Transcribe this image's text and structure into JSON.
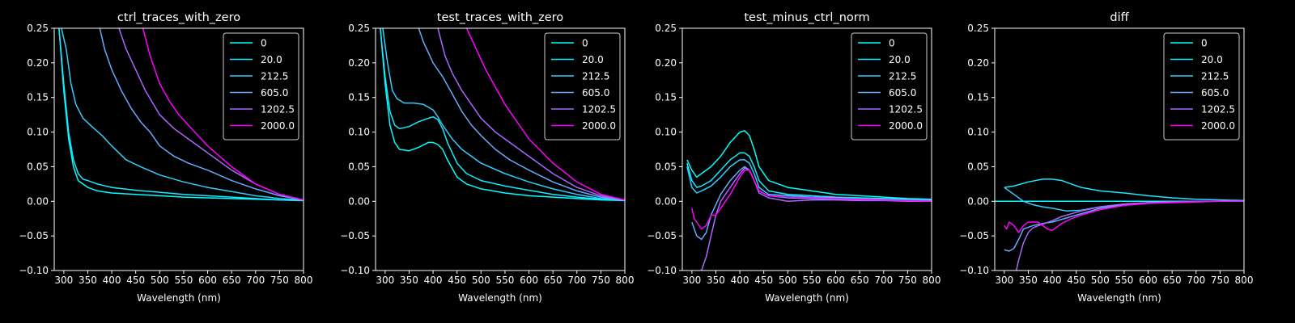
{
  "figure": {
    "background": "#000000",
    "foreground": "#ffffff"
  },
  "legend_entries": [
    "0",
    "20.0",
    "212.5",
    "605.0",
    "1202.5",
    "2000.0"
  ],
  "series_colors": [
    "#00ffff",
    "#14ebff",
    "#33ccff",
    "#66aaff",
    "#aa66ff",
    "#ff00ff"
  ],
  "chart_data": [
    {
      "type": "line",
      "title": "ctrl_traces_with_zero",
      "xlabel": "Wavelength (nm)",
      "ylabel": "",
      "xlim": [
        280,
        800
      ],
      "ylim": [
        -0.1,
        0.25
      ],
      "xticks": [
        "300",
        "350",
        "400",
        "450",
        "500",
        "550",
        "600",
        "650",
        "700",
        "750",
        "800"
      ],
      "yticks": [
        "−0.10",
        "−0.05",
        "0.00",
        "0.05",
        "0.10",
        "0.15",
        "0.20",
        "0.25"
      ],
      "legend": "top-right",
      "grid": false,
      "series": [
        {
          "name": "0",
          "x": [
            290,
            300,
            310,
            320,
            330,
            340,
            350,
            370,
            400,
            450,
            500,
            550,
            600,
            650,
            700,
            750,
            800
          ],
          "y": [
            0.25,
            0.16,
            0.09,
            0.05,
            0.03,
            0.025,
            0.02,
            0.015,
            0.012,
            0.01,
            0.008,
            0.006,
            0.005,
            0.004,
            0.003,
            0.002,
            0.001
          ]
        },
        {
          "name": "20.0",
          "x": [
            290,
            300,
            310,
            320,
            330,
            340,
            350,
            370,
            400,
            450,
            500,
            550,
            600,
            650,
            700,
            750,
            800
          ],
          "y": [
            0.25,
            0.17,
            0.1,
            0.06,
            0.04,
            0.032,
            0.03,
            0.025,
            0.02,
            0.016,
            0.013,
            0.01,
            0.008,
            0.006,
            0.004,
            0.002,
            0.001
          ]
        },
        {
          "name": "212.5",
          "x": [
            295,
            305,
            315,
            325,
            340,
            360,
            380,
            400,
            430,
            460,
            500,
            550,
            600,
            650,
            700,
            750,
            800
          ],
          "y": [
            0.25,
            0.22,
            0.17,
            0.14,
            0.12,
            0.107,
            0.095,
            0.08,
            0.06,
            0.05,
            0.038,
            0.028,
            0.02,
            0.014,
            0.008,
            0.004,
            0.002
          ]
        },
        {
          "name": "605.0",
          "x": [
            375,
            385,
            400,
            420,
            440,
            460,
            480,
            500,
            530,
            560,
            600,
            650,
            700,
            750,
            800
          ],
          "y": [
            0.25,
            0.22,
            0.19,
            0.16,
            0.135,
            0.115,
            0.1,
            0.08,
            0.065,
            0.055,
            0.045,
            0.03,
            0.018,
            0.008,
            0.002
          ]
        },
        {
          "name": "1202.5",
          "x": [
            415,
            430,
            450,
            470,
            500,
            530,
            560,
            600,
            650,
            700,
            750,
            800
          ],
          "y": [
            0.25,
            0.22,
            0.19,
            0.16,
            0.125,
            0.105,
            0.09,
            0.07,
            0.045,
            0.025,
            0.01,
            0.002
          ]
        },
        {
          "name": "2000.0",
          "x": [
            465,
            480,
            500,
            520,
            540,
            560,
            600,
            650,
            700,
            750,
            800
          ],
          "y": [
            0.25,
            0.21,
            0.17,
            0.145,
            0.125,
            0.11,
            0.08,
            0.05,
            0.025,
            0.01,
            0.002
          ]
        }
      ]
    },
    {
      "type": "line",
      "title": "test_traces_with_zero",
      "xlabel": "Wavelength (nm)",
      "ylabel": "",
      "xlim": [
        280,
        800
      ],
      "ylim": [
        -0.1,
        0.25
      ],
      "xticks": [
        "300",
        "350",
        "400",
        "450",
        "500",
        "550",
        "600",
        "650",
        "700",
        "750",
        "800"
      ],
      "yticks": [
        "−0.10",
        "−0.05",
        "0.00",
        "0.05",
        "0.10",
        "0.15",
        "0.20",
        "0.25"
      ],
      "legend": "top-right",
      "grid": false,
      "series": [
        {
          "name": "0",
          "x": [
            290,
            300,
            310,
            320,
            330,
            350,
            370,
            390,
            400,
            410,
            420,
            430,
            450,
            470,
            500,
            550,
            600,
            650,
            700,
            750,
            800
          ],
          "y": [
            0.25,
            0.17,
            0.11,
            0.085,
            0.075,
            0.073,
            0.078,
            0.085,
            0.085,
            0.082,
            0.075,
            0.06,
            0.035,
            0.025,
            0.018,
            0.012,
            0.008,
            0.006,
            0.004,
            0.002,
            0.001
          ]
        },
        {
          "name": "20.0",
          "x": [
            290,
            300,
            310,
            320,
            330,
            350,
            370,
            390,
            400,
            410,
            420,
            430,
            450,
            470,
            500,
            550,
            600,
            650,
            700,
            750,
            800
          ],
          "y": [
            0.25,
            0.18,
            0.13,
            0.11,
            0.105,
            0.108,
            0.115,
            0.12,
            0.122,
            0.118,
            0.105,
            0.085,
            0.055,
            0.04,
            0.03,
            0.022,
            0.016,
            0.01,
            0.006,
            0.003,
            0.001
          ]
        },
        {
          "name": "212.5",
          "x": [
            295,
            305,
            315,
            325,
            340,
            360,
            380,
            400,
            410,
            420,
            440,
            460,
            500,
            550,
            600,
            650,
            700,
            750,
            800
          ],
          "y": [
            0.25,
            0.2,
            0.16,
            0.148,
            0.142,
            0.142,
            0.14,
            0.132,
            0.122,
            0.11,
            0.09,
            0.075,
            0.055,
            0.04,
            0.028,
            0.018,
            0.01,
            0.004,
            0.002
          ]
        },
        {
          "name": "605.0",
          "x": [
            370,
            380,
            400,
            420,
            440,
            460,
            480,
            500,
            530,
            560,
            600,
            650,
            700,
            750,
            800
          ],
          "y": [
            0.25,
            0.23,
            0.2,
            0.18,
            0.155,
            0.13,
            0.11,
            0.095,
            0.075,
            0.06,
            0.045,
            0.028,
            0.015,
            0.006,
            0.002
          ]
        },
        {
          "name": "1202.5",
          "x": [
            410,
            425,
            440,
            460,
            480,
            500,
            530,
            560,
            600,
            650,
            700,
            750,
            800
          ],
          "y": [
            0.25,
            0.21,
            0.185,
            0.16,
            0.14,
            0.12,
            0.1,
            0.085,
            0.065,
            0.04,
            0.02,
            0.008,
            0.002
          ]
        },
        {
          "name": "2000.0",
          "x": [
            470,
            490,
            510,
            530,
            550,
            580,
            600,
            650,
            700,
            750,
            800
          ],
          "y": [
            0.25,
            0.22,
            0.19,
            0.165,
            0.14,
            0.11,
            0.09,
            0.055,
            0.028,
            0.01,
            0.002
          ]
        }
      ]
    },
    {
      "type": "line",
      "title": "test_minus_ctrl_norm",
      "xlabel": "Wavelength (nm)",
      "ylabel": "",
      "xlim": [
        280,
        800
      ],
      "ylim": [
        -0.1,
        0.25
      ],
      "xticks": [
        "300",
        "350",
        "400",
        "450",
        "500",
        "550",
        "600",
        "650",
        "700",
        "750",
        "800"
      ],
      "yticks": [
        "−0.10",
        "−0.05",
        "0.00",
        "0.05",
        "0.10",
        "0.15",
        "0.20",
        "0.25"
      ],
      "legend": "top-right",
      "grid": false,
      "series": [
        {
          "name": "0",
          "x": [
            290,
            300,
            310,
            320,
            340,
            360,
            380,
            400,
            410,
            420,
            430,
            440,
            460,
            500,
            550,
            600,
            650,
            700,
            750,
            800
          ],
          "y": [
            0.06,
            0.045,
            0.035,
            0.04,
            0.05,
            0.065,
            0.085,
            0.1,
            0.102,
            0.095,
            0.075,
            0.05,
            0.03,
            0.02,
            0.015,
            0.01,
            0.008,
            0.006,
            0.004,
            0.003
          ]
        },
        {
          "name": "20.0",
          "x": [
            290,
            300,
            310,
            320,
            340,
            360,
            380,
            400,
            410,
            420,
            430,
            440,
            460,
            500,
            550,
            600,
            650,
            700,
            750,
            800
          ],
          "y": [
            0.055,
            0.03,
            0.02,
            0.022,
            0.03,
            0.045,
            0.06,
            0.07,
            0.07,
            0.065,
            0.05,
            0.03,
            0.015,
            0.01,
            0.008,
            0.006,
            0.005,
            0.004,
            0.003,
            0.002
          ]
        },
        {
          "name": "212.5",
          "x": [
            290,
            300,
            310,
            320,
            340,
            360,
            380,
            400,
            410,
            420,
            430,
            440,
            460,
            500,
            550,
            600,
            650,
            700,
            750,
            800
          ],
          "y": [
            0.05,
            0.02,
            0.012,
            0.015,
            0.022,
            0.035,
            0.05,
            0.06,
            0.06,
            0.055,
            0.04,
            0.02,
            0.01,
            0.008,
            0.006,
            0.005,
            0.004,
            0.003,
            0.002,
            0.002
          ]
        },
        {
          "name": "605.0",
          "x": [
            300,
            310,
            320,
            330,
            340,
            360,
            380,
            400,
            410,
            420,
            430,
            440,
            460,
            500,
            550,
            600,
            650,
            700,
            750,
            800
          ],
          "y": [
            -0.03,
            -0.05,
            -0.055,
            -0.045,
            -0.02,
            0.01,
            0.03,
            0.045,
            0.05,
            0.045,
            0.03,
            0.015,
            0.008,
            0.005,
            0.004,
            0.003,
            0.002,
            0.002,
            0.001,
            0.001
          ]
        },
        {
          "name": "1202.5",
          "x": [
            320,
            330,
            340,
            350,
            360,
            380,
            400,
            410,
            420,
            430,
            440,
            460,
            500,
            550,
            600,
            650,
            700,
            750,
            800
          ],
          "y": [
            -0.1,
            -0.08,
            -0.05,
            -0.02,
            0.0,
            0.02,
            0.04,
            0.048,
            0.045,
            0.03,
            0.012,
            0.005,
            0.0,
            0.002,
            0.002,
            0.001,
            0.001,
            0.0,
            0.0
          ]
        },
        {
          "name": "2000.0",
          "x": [
            300,
            305,
            310,
            320,
            330,
            340,
            350,
            360,
            380,
            400,
            410,
            420,
            430,
            440,
            460,
            500,
            550,
            600,
            650,
            700,
            750,
            800
          ],
          "y": [
            -0.01,
            -0.025,
            -0.03,
            -0.04,
            -0.035,
            -0.02,
            -0.02,
            -0.01,
            0.01,
            0.035,
            0.045,
            0.045,
            0.03,
            0.015,
            0.008,
            0.006,
            0.005,
            0.004,
            0.003,
            0.002,
            0.001,
            0.0
          ]
        }
      ]
    },
    {
      "type": "line",
      "title": "diff",
      "xlabel": "Wavelength (nm)",
      "ylabel": "",
      "xlim": [
        280,
        800
      ],
      "ylim": [
        -0.1,
        0.25
      ],
      "xticks": [
        "300",
        "350",
        "400",
        "450",
        "500",
        "550",
        "600",
        "650",
        "700",
        "750",
        "800"
      ],
      "yticks": [
        "−0.10",
        "−0.05",
        "0.00",
        "0.05",
        "0.10",
        "0.15",
        "0.20",
        "0.25"
      ],
      "legend": "top-right",
      "grid": false,
      "series": [
        {
          "name": "0",
          "x": [
            280,
            800
          ],
          "y": [
            0.0,
            0.0
          ]
        },
        {
          "name": "20.0",
          "x": [
            300,
            320,
            350,
            380,
            400,
            420,
            440,
            460,
            500,
            550,
            600,
            650,
            700,
            750,
            800
          ],
          "y": [
            0.02,
            0.022,
            0.028,
            0.032,
            0.032,
            0.03,
            0.025,
            0.02,
            0.015,
            0.012,
            0.008,
            0.005,
            0.003,
            0.002,
            0.001
          ]
        },
        {
          "name": "212.5",
          "x": [
            300,
            320,
            340,
            360,
            380,
            400,
            430,
            460,
            500,
            550,
            600,
            650,
            700,
            750,
            800
          ],
          "y": [
            0.02,
            0.01,
            0.0,
            -0.005,
            -0.008,
            -0.01,
            -0.014,
            -0.013,
            -0.008,
            -0.004,
            -0.002,
            -0.001,
            0.0,
            0.0,
            0.0
          ]
        },
        {
          "name": "605.0",
          "x": [
            300,
            310,
            320,
            330,
            340,
            360,
            380,
            400,
            420,
            440,
            460,
            500,
            550,
            600,
            650,
            700,
            750,
            800
          ],
          "y": [
            -0.07,
            -0.072,
            -0.068,
            -0.055,
            -0.04,
            -0.035,
            -0.032,
            -0.03,
            -0.026,
            -0.022,
            -0.018,
            -0.01,
            -0.005,
            -0.002,
            -0.001,
            0.0,
            0.0,
            0.0
          ]
        },
        {
          "name": "1202.5",
          "x": [
            325,
            330,
            340,
            350,
            360,
            380,
            400,
            420,
            440,
            460,
            500,
            550,
            600,
            650,
            700,
            750,
            800
          ],
          "y": [
            -0.1,
            -0.085,
            -0.06,
            -0.045,
            -0.038,
            -0.033,
            -0.028,
            -0.022,
            -0.018,
            -0.014,
            -0.008,
            -0.004,
            -0.002,
            -0.001,
            0.0,
            0.0,
            0.0
          ]
        },
        {
          "name": "2000.0",
          "x": [
            300,
            305,
            310,
            320,
            330,
            340,
            350,
            370,
            390,
            400,
            420,
            440,
            460,
            500,
            550,
            600,
            650,
            700,
            750,
            800
          ],
          "y": [
            -0.035,
            -0.04,
            -0.03,
            -0.035,
            -0.045,
            -0.035,
            -0.03,
            -0.03,
            -0.04,
            -0.042,
            -0.032,
            -0.025,
            -0.02,
            -0.012,
            -0.006,
            -0.003,
            -0.002,
            -0.001,
            0.0,
            0.0
          ]
        }
      ]
    }
  ]
}
